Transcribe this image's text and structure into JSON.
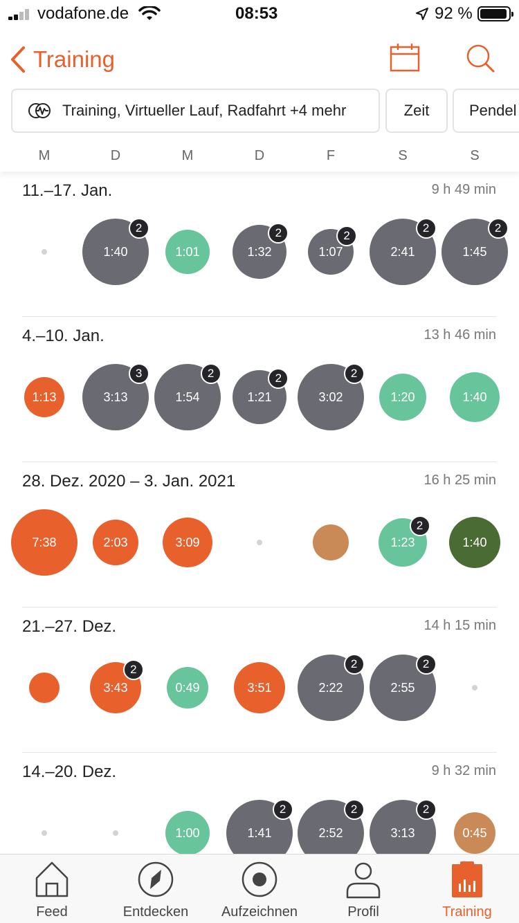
{
  "status_bar": {
    "carrier": "vodafone.de",
    "time": "08:53",
    "battery": "92 %"
  },
  "nav": {
    "back_label": "Training",
    "calendar_icon": "calendar-icon",
    "search_icon": "search-icon"
  },
  "filters": {
    "activity": "Training, Virtueller Lauf, Radfahrt +4 mehr",
    "time": "Zeit",
    "commute": "Pendel"
  },
  "days": [
    "M",
    "D",
    "M",
    "D",
    "F",
    "S",
    "S"
  ],
  "colors": {
    "accent": "#e8602c",
    "gray": "#6a6a72",
    "green": "#68c49b",
    "tan": "#c98a58",
    "dark_green": "#4b6b34",
    "badge": "#252529"
  },
  "weeks": [
    {
      "title": "11.–17. Jan.",
      "total": "9 h 49 min",
      "days": [
        {
          "type": "dot"
        },
        {
          "label": "1:40",
          "badge": "2",
          "color": "gray",
          "size": 96
        },
        {
          "label": "1:01",
          "color": "green",
          "size": 64
        },
        {
          "label": "1:32",
          "badge": "2",
          "color": "gray",
          "size": 78
        },
        {
          "label": "1:07",
          "badge": "2",
          "color": "gray",
          "size": 66
        },
        {
          "label": "2:41",
          "badge": "2",
          "color": "gray",
          "size": 96
        },
        {
          "label": "1:45",
          "badge": "2",
          "color": "gray",
          "size": 96
        }
      ]
    },
    {
      "title": "4.–10. Jan.",
      "total": "13 h 46 min",
      "days": [
        {
          "label": "1:13",
          "color": "accent",
          "size": 58
        },
        {
          "label": "3:13",
          "badge": "3",
          "color": "gray",
          "size": 96
        },
        {
          "label": "1:54",
          "badge": "2",
          "color": "gray",
          "size": 96
        },
        {
          "label": "1:21",
          "badge": "2",
          "color": "gray",
          "size": 78
        },
        {
          "label": "3:02",
          "badge": "2",
          "color": "gray",
          "size": 96
        },
        {
          "label": "1:20",
          "color": "green",
          "size": 68
        },
        {
          "label": "1:40",
          "color": "green",
          "size": 72
        }
      ]
    },
    {
      "title": "28. Dez. 2020 – 3. Jan. 2021",
      "total": "16 h 25 min",
      "days": [
        {
          "label": "7:38",
          "color": "accent",
          "size": 96
        },
        {
          "label": "2:03",
          "color": "accent",
          "size": 66
        },
        {
          "label": "3:09",
          "color": "accent",
          "size": 72
        },
        {
          "type": "dot"
        },
        {
          "label": "",
          "color": "tan",
          "size": 52
        },
        {
          "label": "1:23",
          "badge": "2",
          "color": "green",
          "size": 70
        },
        {
          "label": "1:40",
          "color": "dark_green",
          "size": 74
        }
      ]
    },
    {
      "title": "21.–27. Dez.",
      "total": "14 h 15 min",
      "days": [
        {
          "label": "",
          "color": "accent",
          "size": 44
        },
        {
          "label": "3:43",
          "badge": "2",
          "color": "accent",
          "size": 74
        },
        {
          "label": "0:49",
          "color": "green",
          "size": 60
        },
        {
          "label": "3:51",
          "color": "accent",
          "size": 74
        },
        {
          "label": "2:22",
          "badge": "2",
          "color": "gray",
          "size": 96
        },
        {
          "label": "2:55",
          "badge": "2",
          "color": "gray",
          "size": 96
        },
        {
          "type": "dot"
        }
      ]
    },
    {
      "title": "14.–20. Dez.",
      "total": "9 h 32 min",
      "days": [
        {
          "type": "dot"
        },
        {
          "type": "dot"
        },
        {
          "label": "1:00",
          "color": "green",
          "size": 64
        },
        {
          "label": "1:41",
          "badge": "2",
          "color": "gray",
          "size": 96
        },
        {
          "label": "2:52",
          "badge": "2",
          "color": "gray",
          "size": 96
        },
        {
          "label": "3:13",
          "badge": "2",
          "color": "gray",
          "size": 96
        },
        {
          "label": "0:45",
          "color": "tan",
          "size": 60
        }
      ]
    }
  ],
  "tabs": [
    {
      "label": "Feed",
      "icon": "house-icon"
    },
    {
      "label": "Entdecken",
      "icon": "compass-icon"
    },
    {
      "label": "Aufzeichnen",
      "icon": "record-icon"
    },
    {
      "label": "Profil",
      "icon": "profile-icon"
    },
    {
      "label": "Training",
      "icon": "training-icon",
      "active": true
    }
  ]
}
